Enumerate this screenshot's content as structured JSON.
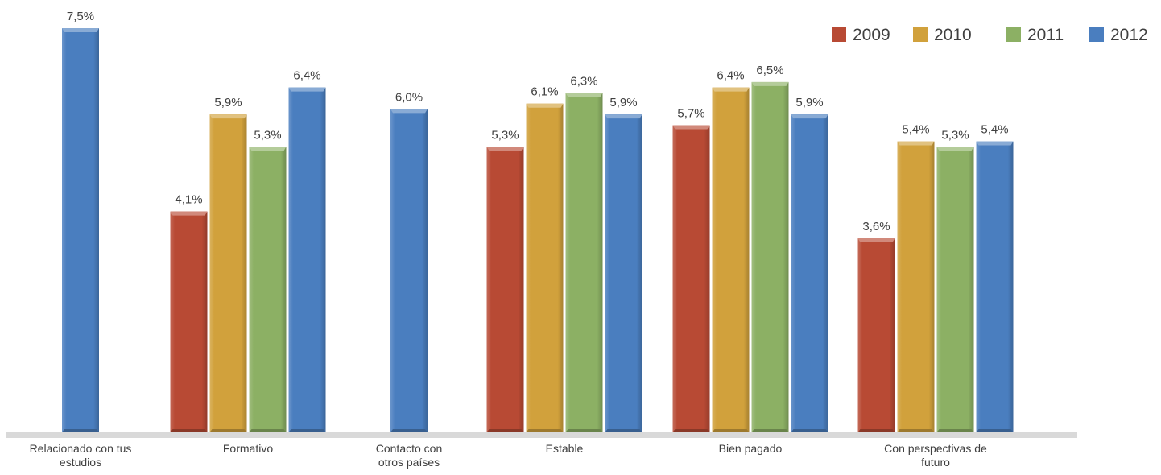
{
  "chart_data": {
    "type": "bar",
    "categories": [
      [
        "Relacionado con tus",
        "estudios"
      ],
      [
        "Formativo"
      ],
      [
        "Contacto con",
        "otros países"
      ],
      [
        "Estable"
      ],
      [
        "Bien pagado"
      ],
      [
        "Con perspectivas de",
        "futuro"
      ]
    ],
    "series": [
      {
        "name": "2009",
        "color": "#b84a34",
        "values": [
          null,
          4.1,
          null,
          5.3,
          5.7,
          3.6
        ],
        "labels": [
          null,
          "4,1%",
          null,
          "5,3%",
          "5,7%",
          "3,6%"
        ]
      },
      {
        "name": "2010",
        "color": "#d1a13c",
        "values": [
          null,
          5.9,
          null,
          6.1,
          6.4,
          5.4
        ],
        "labels": [
          null,
          "5,9%",
          null,
          "6,1%",
          "6,4%",
          "5,4%"
        ]
      },
      {
        "name": "2011",
        "color": "#8cb064",
        "values": [
          null,
          5.3,
          null,
          6.3,
          6.5,
          5.3
        ],
        "labels": [
          null,
          "5,3%",
          null,
          "6,3%",
          "6,5%",
          "5,3%"
        ]
      },
      {
        "name": "2012",
        "color": "#4a7ebf",
        "values": [
          7.5,
          6.4,
          6.0,
          5.9,
          5.9,
          5.4
        ],
        "labels": [
          "7,5%",
          "6,4%",
          "6,0%",
          "5,9%",
          "5,9%",
          "5,4%"
        ]
      }
    ],
    "ylim": [
      0,
      7.5
    ],
    "legend_position": "top-right",
    "grid": false,
    "title": "",
    "xlabel": "",
    "ylabel": ""
  }
}
